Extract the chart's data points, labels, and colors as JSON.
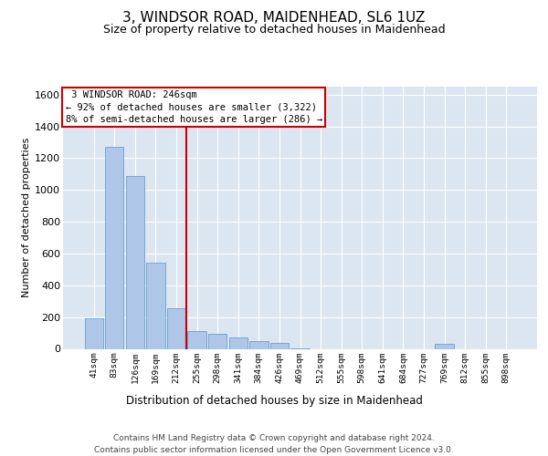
{
  "title": "3, WINDSOR ROAD, MAIDENHEAD, SL6 1UZ",
  "subtitle": "Size of property relative to detached houses in Maidenhead",
  "xlabel": "Distribution of detached houses by size in Maidenhead",
  "ylabel": "Number of detached properties",
  "footer_line1": "Contains HM Land Registry data © Crown copyright and database right 2024.",
  "footer_line2": "Contains public sector information licensed under the Open Government Licence v3.0.",
  "annotation_line1": "3 WINDSOR ROAD: 246sqm",
  "annotation_line2": "← 92% of detached houses are smaller (3,322)",
  "annotation_line3": "8% of semi-detached houses are larger (286) →",
  "bar_color": "#aec6e8",
  "bar_edge_color": "#6ca0d0",
  "vline_color": "#cc0000",
  "categories": [
    "41sqm",
    "83sqm",
    "126sqm",
    "169sqm",
    "212sqm",
    "255sqm",
    "298sqm",
    "341sqm",
    "384sqm",
    "426sqm",
    "469sqm",
    "512sqm",
    "555sqm",
    "598sqm",
    "641sqm",
    "684sqm",
    "727sqm",
    "769sqm",
    "812sqm",
    "855sqm",
    "898sqm"
  ],
  "values": [
    190,
    1270,
    1090,
    545,
    255,
    110,
    95,
    70,
    50,
    35,
    5,
    0,
    0,
    0,
    0,
    0,
    0,
    30,
    0,
    0,
    0
  ],
  "ylim": [
    0,
    1650
  ],
  "yticks": [
    0,
    200,
    400,
    600,
    800,
    1000,
    1200,
    1400,
    1600
  ],
  "plot_bg_color": "#dce6f1",
  "fig_bg_color": "#ffffff",
  "grid_color": "#ffffff",
  "title_fontsize": 11,
  "subtitle_fontsize": 9,
  "xlabel_fontsize": 8.5,
  "ylabel_fontsize": 8,
  "footer_fontsize": 6.5,
  "annot_fontsize": 7.5,
  "vline_position": 4.5
}
